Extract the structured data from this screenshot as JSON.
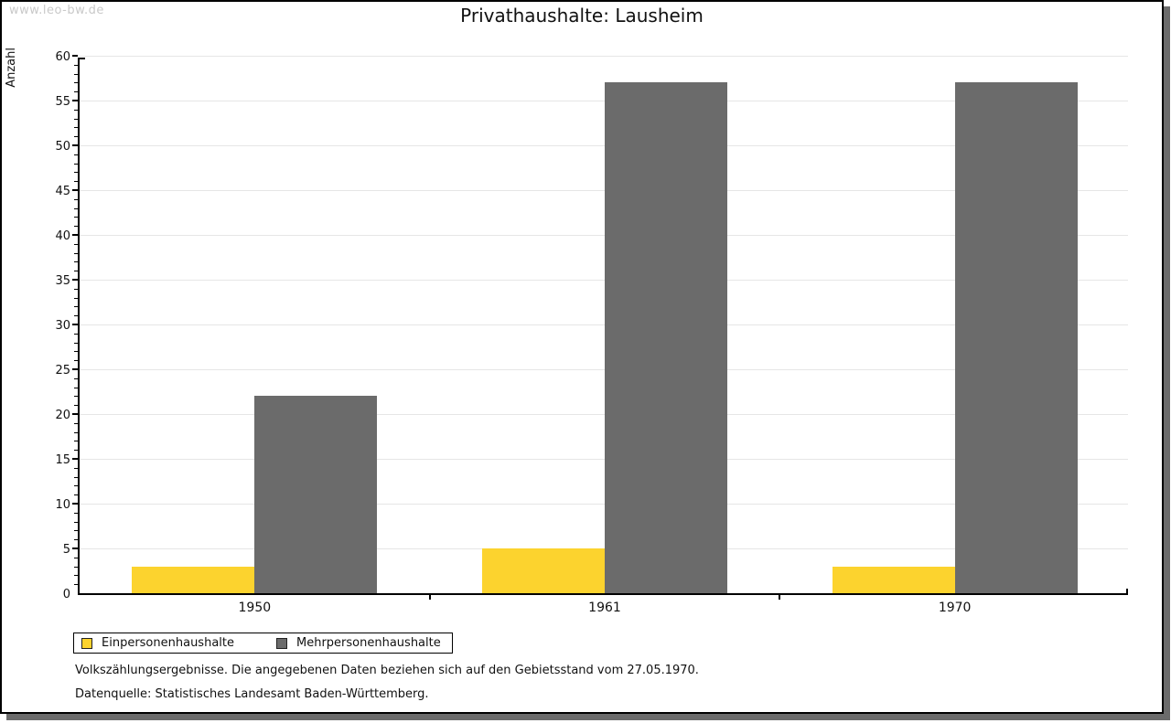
{
  "watermark": "www.leo-bw.de",
  "chart_data": {
    "type": "bar",
    "title": "Privathaushalte: Lausheim",
    "ylabel": "Anzahl",
    "xlabel": "",
    "categories": [
      "1950",
      "1961",
      "1970"
    ],
    "series": [
      {
        "name": "Einpersonenhaushalte",
        "color": "#FCD32E",
        "values": [
          3,
          5,
          3
        ]
      },
      {
        "name": "Mehrpersonenhaushalte",
        "color": "#6B6B6B",
        "values": [
          22,
          57,
          57
        ]
      }
    ],
    "ylim": [
      0,
      60
    ],
    "y_major_step": 5,
    "y_minor_step": 1,
    "grid": true,
    "gridline_color": "#E6E6E6",
    "legend_position": "bottom"
  },
  "footnotes": {
    "line1": "Volkszählungsergebnisse. Die angegebenen Daten beziehen sich auf den Gebietsstand vom 27.05.1970.",
    "line2": "Datenquelle: Statistisches Landesamt Baden-Württemberg."
  }
}
